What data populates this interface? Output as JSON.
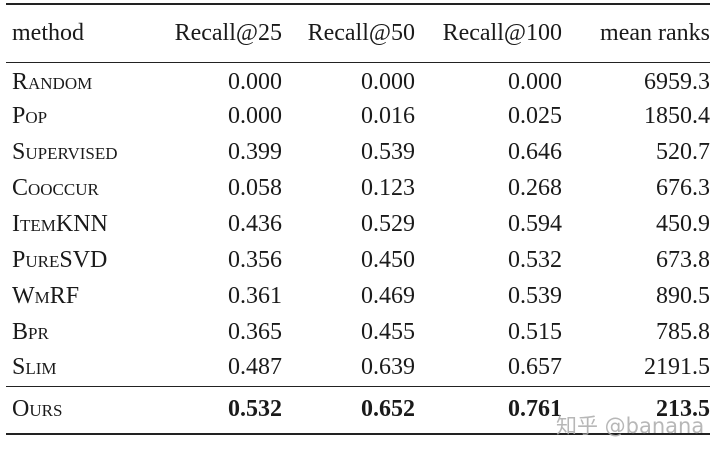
{
  "table": {
    "header": [
      "method",
      "Recall@25",
      "Recall@50",
      "Recall@100",
      "mean ranks"
    ],
    "rows": [
      [
        "Random",
        "0.000",
        "0.000",
        "0.000",
        "6959.3"
      ],
      [
        "Pop",
        "0.000",
        "0.016",
        "0.025",
        "1850.4"
      ],
      [
        "Supervised",
        "0.399",
        "0.539",
        "0.646",
        "520.7"
      ],
      [
        "Cooccur",
        "0.058",
        "0.123",
        "0.268",
        "676.3"
      ],
      [
        "ItemKNN",
        "0.436",
        "0.529",
        "0.594",
        "450.9"
      ],
      [
        "PureSVD",
        "0.356",
        "0.450",
        "0.532",
        "673.8"
      ],
      [
        "WmRF",
        "0.361",
        "0.469",
        "0.539",
        "890.5"
      ],
      [
        "Bpr",
        "0.365",
        "0.455",
        "0.515",
        "785.8"
      ],
      [
        "Slim",
        "0.487",
        "0.639",
        "0.657",
        "2191.5"
      ]
    ],
    "final_row": [
      "Ours",
      "0.532",
      "0.652",
      "0.761",
      "213.5"
    ]
  },
  "watermark": "知乎 @banana"
}
